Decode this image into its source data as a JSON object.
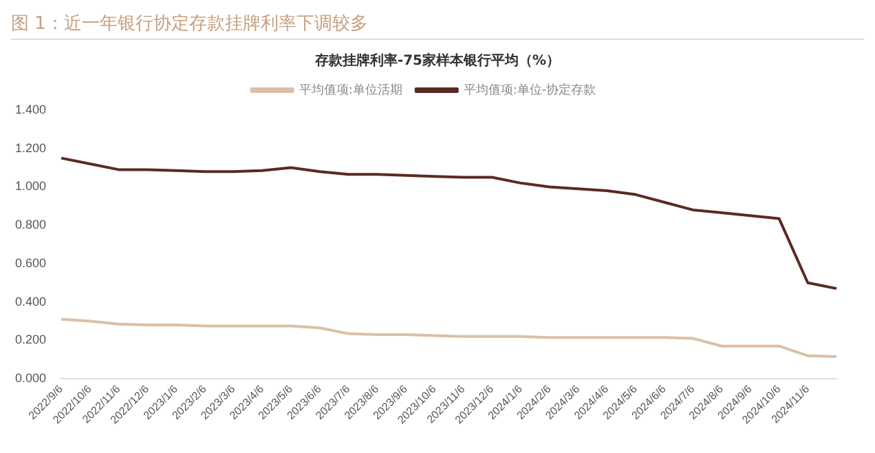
{
  "chart_data": {
    "type": "line",
    "title": "图 1：近一年银行协定存款挂牌利率下调较多",
    "subtitle": "存款挂牌利率-75家样本银行平均（%）",
    "categories": [
      "2022/9/6",
      "2022/10/6",
      "2022/11/6",
      "2022/12/6",
      "2023/1/6",
      "2023/2/6",
      "2023/3/6",
      "2023/4/6",
      "2023/5/6",
      "2023/6/6",
      "2023/7/6",
      "2023/8/6",
      "2023/9/6",
      "2023/10/6",
      "2023/11/6",
      "2023/12/6",
      "2024/1/6",
      "2024/2/6",
      "2024/3/6",
      "2024/4/6",
      "2024/5/6",
      "2024/6/6",
      "2024/7/6",
      "2024/8/6",
      "2024/9/6",
      "2024/10/6",
      "2024/11/6",
      null
    ],
    "series": [
      {
        "name": "平均值项:单位活期",
        "color": "#dcc0a4",
        "values": [
          0.31,
          0.3,
          0.285,
          0.28,
          0.28,
          0.275,
          0.275,
          0.275,
          0.275,
          0.265,
          0.235,
          0.23,
          0.23,
          0.225,
          0.22,
          0.22,
          0.22,
          0.215,
          0.215,
          0.215,
          0.215,
          0.215,
          0.21,
          0.17,
          0.17,
          0.17,
          0.12,
          0.115
        ]
      },
      {
        "name": "平均值项:单位-协定存款",
        "color": "#5a2a22",
        "values": [
          1.15,
          1.12,
          1.09,
          1.09,
          1.085,
          1.08,
          1.08,
          1.085,
          1.1,
          1.08,
          1.065,
          1.065,
          1.06,
          1.055,
          1.05,
          1.05,
          1.02,
          1.0,
          0.99,
          0.98,
          0.96,
          0.92,
          0.88,
          0.865,
          0.85,
          0.835,
          0.5,
          0.47
        ]
      }
    ],
    "ylim": [
      0,
      1.4
    ],
    "yticks": [
      {
        "value": 0,
        "label": "0.000"
      },
      {
        "value": 0.2,
        "label": "0.200"
      },
      {
        "value": 0.4,
        "label": "0.400"
      },
      {
        "value": 0.6,
        "label": "0.600"
      },
      {
        "value": 0.8,
        "label": "0.800"
      },
      {
        "value": 1.0,
        "label": "1.000"
      },
      {
        "value": 1.2,
        "label": "1.200"
      },
      {
        "value": 1.4,
        "label": "1.400"
      }
    ],
    "grid": false,
    "legend": "top",
    "marker": "none",
    "line_style": "solid"
  }
}
